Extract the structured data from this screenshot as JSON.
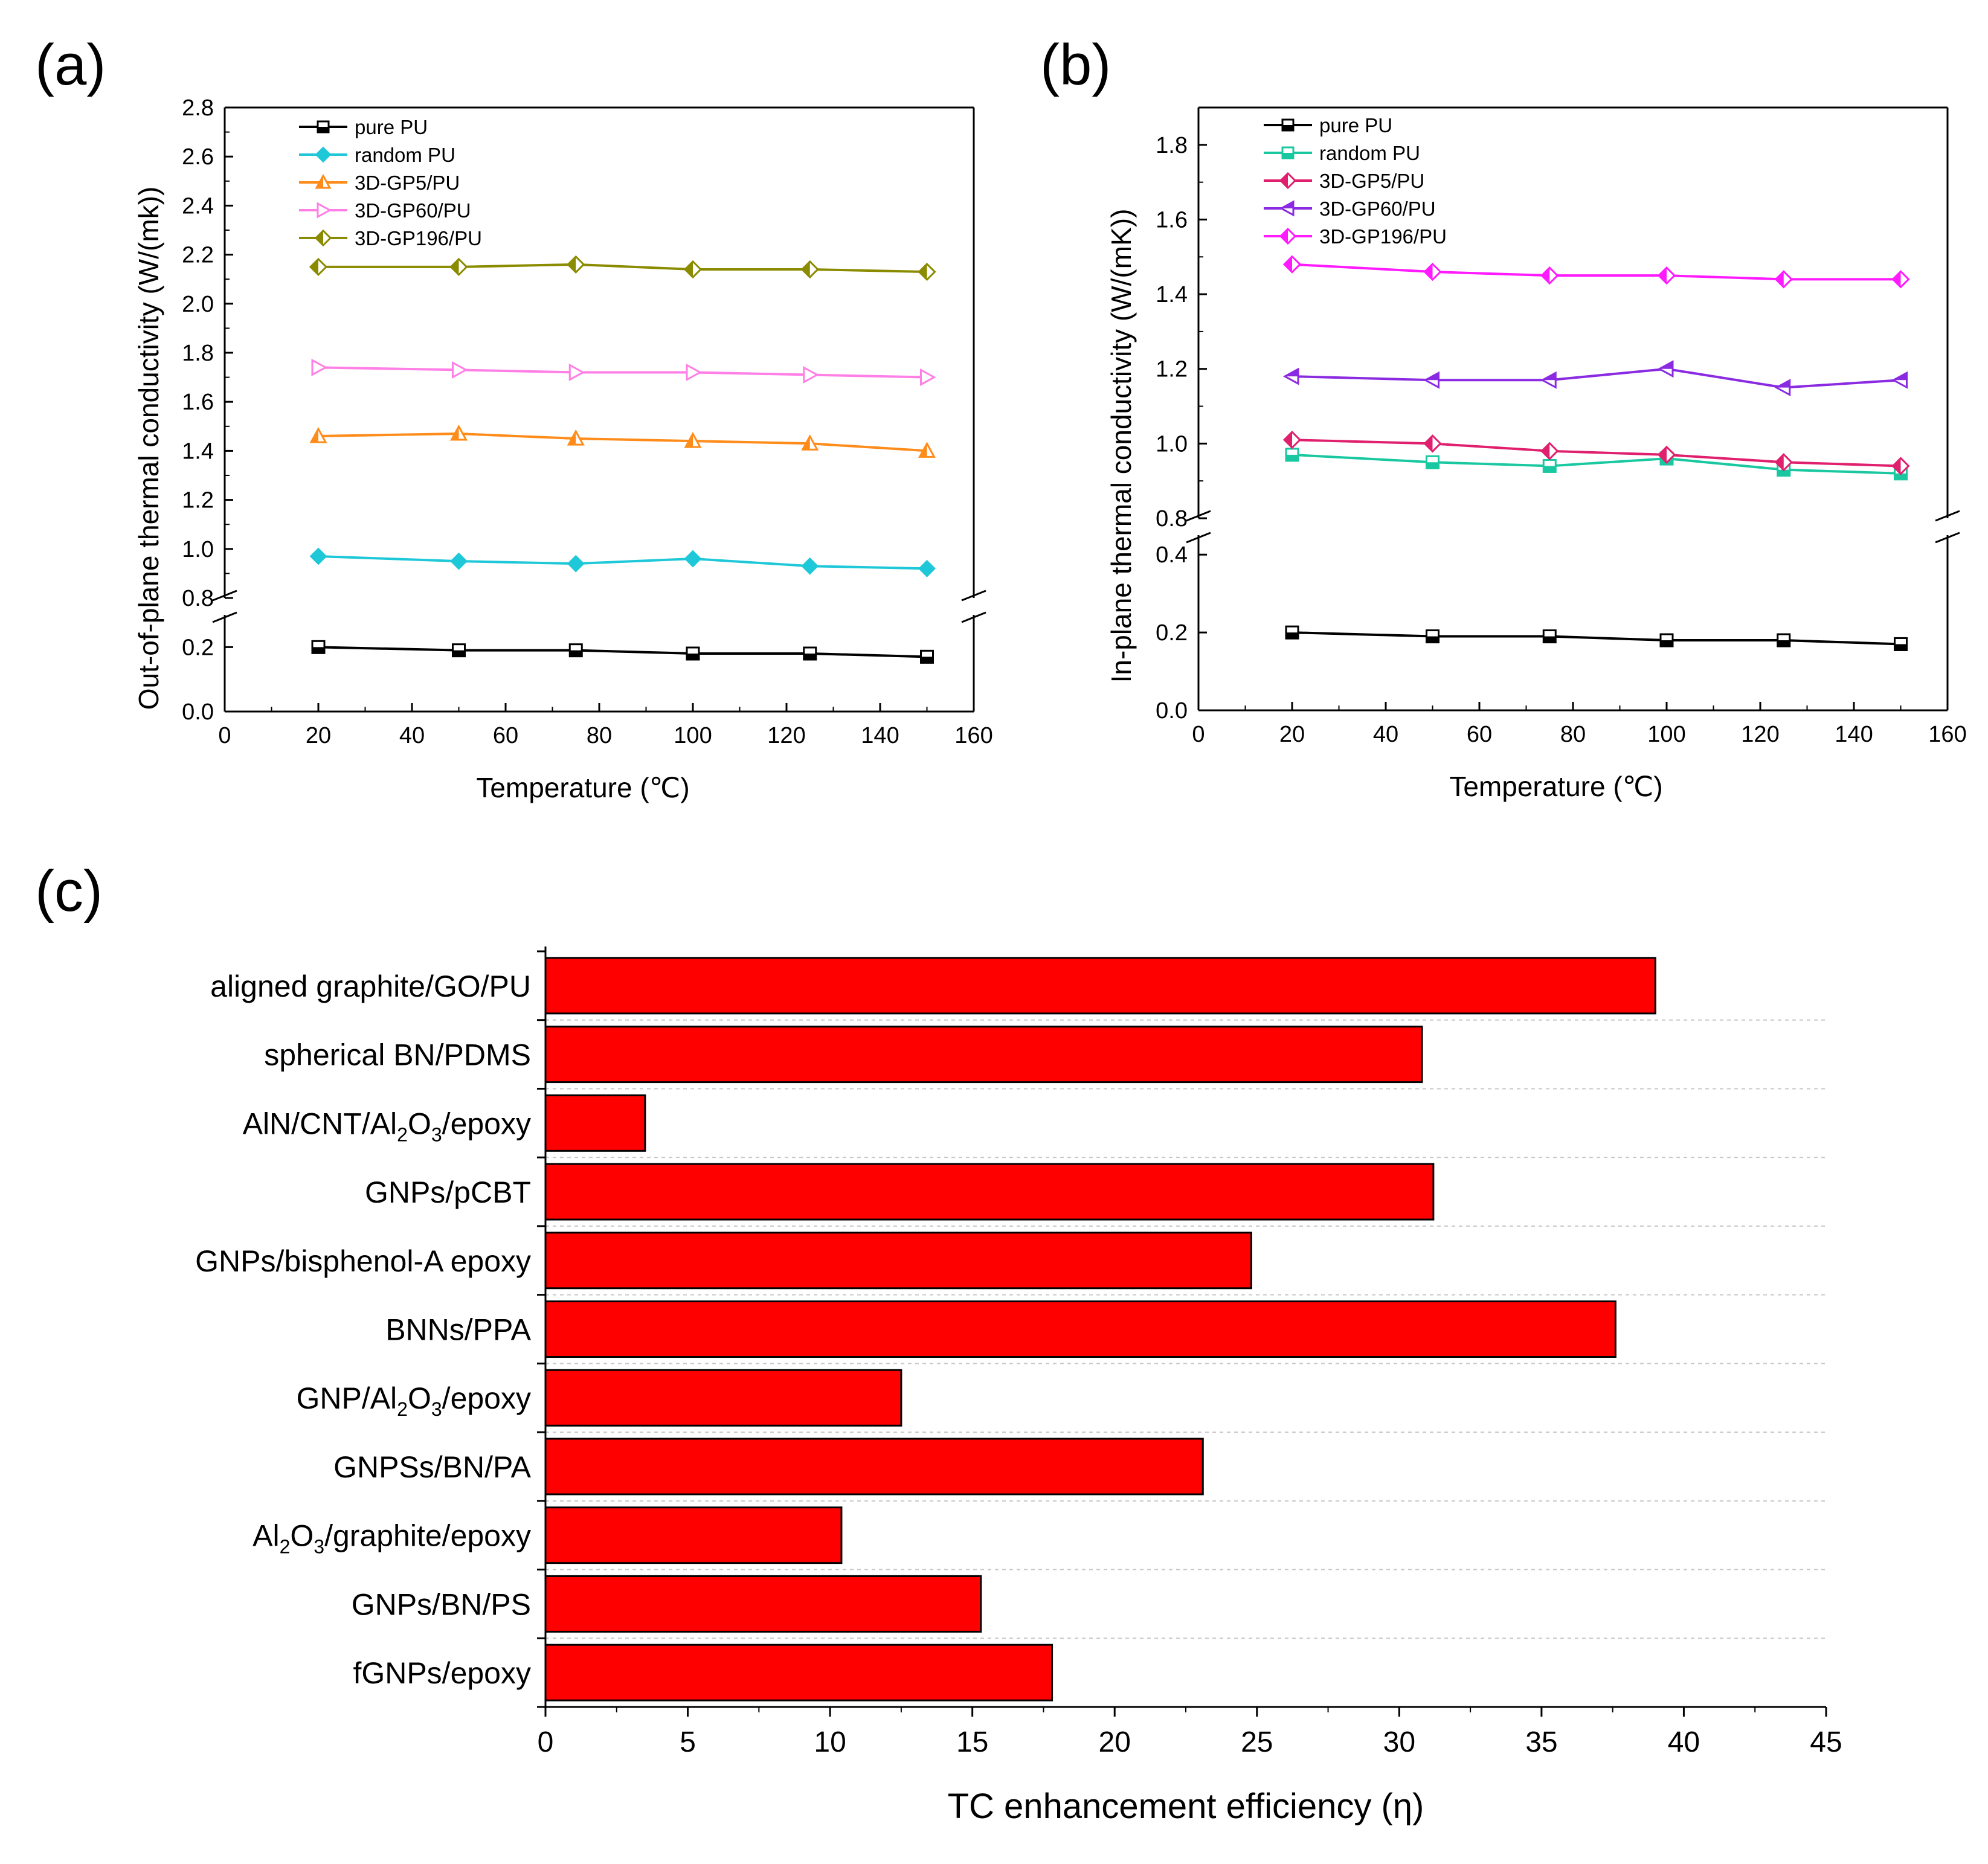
{
  "panels": [
    {
      "id": "a",
      "label": "(a)",
      "chart_data": {
        "type": "line",
        "xlabel": "Temperature (℃)",
        "ylabel": "Out-of-plane thermal conductivity (W/(mk))",
        "xlim": [
          0,
          160
        ],
        "xticks": [
          0,
          20,
          40,
          60,
          80,
          100,
          120,
          140,
          160
        ],
        "y_break": {
          "lower_range": [
            0.0,
            0.3
          ],
          "upper_range": [
            0.8,
            2.8
          ]
        },
        "yticks_lower": [
          "0.0",
          "0.2"
        ],
        "yticks_upper": [
          "0.8",
          "1.0",
          "1.2",
          "1.4",
          "1.6",
          "1.8",
          "2.0",
          "2.2",
          "2.4",
          "2.6",
          "2.8"
        ],
        "legend_position": "top-left",
        "x": [
          20,
          50,
          75,
          100,
          125,
          150
        ],
        "series": [
          {
            "name": "pure PU",
            "color": "#000000",
            "marker": "square-half",
            "values": [
              0.2,
              0.19,
              0.19,
              0.18,
              0.18,
              0.17
            ]
          },
          {
            "name": "random PU",
            "color": "#1ec8d8",
            "marker": "diamond",
            "values": [
              0.97,
              0.95,
              0.94,
              0.96,
              0.93,
              0.92
            ]
          },
          {
            "name": "3D-GP5/PU",
            "color": "#ff8c1a",
            "marker": "triangle-up",
            "values": [
              1.46,
              1.47,
              1.45,
              1.44,
              1.43,
              1.4
            ]
          },
          {
            "name": "3D-GP60/PU",
            "color": "#ff7fe6",
            "marker": "triangle-right",
            "values": [
              1.74,
              1.73,
              1.72,
              1.72,
              1.71,
              1.7
            ]
          },
          {
            "name": "3D-GP196/PU",
            "color": "#8b8b00",
            "marker": "diamond-half",
            "values": [
              2.15,
              2.15,
              2.16,
              2.14,
              2.14,
              2.13
            ]
          }
        ]
      }
    },
    {
      "id": "b",
      "label": "(b)",
      "chart_data": {
        "type": "line",
        "xlabel": "Temperature (℃)",
        "ylabel": "In-plane thermal conductivity (W/(mK))",
        "xlim": [
          0,
          160
        ],
        "xticks": [
          0,
          20,
          40,
          60,
          80,
          100,
          120,
          140,
          160
        ],
        "y_break": {
          "lower_range": [
            0.0,
            0.45
          ],
          "upper_range": [
            0.8,
            1.9
          ]
        },
        "yticks_lower": [
          "0.0",
          "0.2",
          "0.4"
        ],
        "yticks_upper": [
          "0.8",
          "1.0",
          "1.2",
          "1.4",
          "1.6",
          "1.8"
        ],
        "legend_position": "top-left",
        "x": [
          20,
          50,
          75,
          100,
          125,
          150
        ],
        "series": [
          {
            "name": "pure PU",
            "color": "#000000",
            "marker": "square-half",
            "values": [
              0.2,
              0.19,
              0.19,
              0.18,
              0.18,
              0.17
            ]
          },
          {
            "name": "random PU",
            "color": "#19c8a0",
            "marker": "square-half",
            "values": [
              0.97,
              0.95,
              0.94,
              0.96,
              0.93,
              0.92
            ]
          },
          {
            "name": "3D-GP5/PU",
            "color": "#e0206e",
            "marker": "diamond-half",
            "values": [
              1.01,
              1.0,
              0.98,
              0.97,
              0.95,
              0.94
            ]
          },
          {
            "name": "3D-GP60/PU",
            "color": "#8a2be2",
            "marker": "triangle-left-half",
            "values": [
              1.18,
              1.17,
              1.17,
              1.2,
              1.15,
              1.17
            ]
          },
          {
            "name": "3D-GP196/PU",
            "color": "#ff1aff",
            "marker": "diamond-half",
            "values": [
              1.48,
              1.46,
              1.45,
              1.45,
              1.44,
              1.44
            ]
          }
        ]
      }
    },
    {
      "id": "c",
      "label": "(c)",
      "chart_data": {
        "type": "bar",
        "orientation": "horizontal",
        "xlabel": "TC enhancement efficiency (η)",
        "xlim": [
          0,
          45
        ],
        "xticks": [
          0,
          5,
          10,
          15,
          20,
          25,
          30,
          35,
          40,
          45
        ],
        "bar_color": "#ff0000",
        "categories": [
          {
            "parts": [
              {
                "t": "aligned graphite/GO/PU"
              }
            ]
          },
          {
            "parts": [
              {
                "t": "spherical BN/PDMS"
              }
            ]
          },
          {
            "parts": [
              {
                "t": "AlN/CNT/Al"
              },
              {
                "t": "2",
                "sub": true
              },
              {
                "t": "O"
              },
              {
                "t": "3",
                "sub": true
              },
              {
                "t": "/epoxy"
              }
            ]
          },
          {
            "parts": [
              {
                "t": "GNPs/pCBT"
              }
            ]
          },
          {
            "parts": [
              {
                "t": "GNPs/bisphenol-A epoxy"
              }
            ]
          },
          {
            "parts": [
              {
                "t": "BNNs/PPA"
              }
            ]
          },
          {
            "parts": [
              {
                "t": "GNP/Al"
              },
              {
                "t": "2",
                "sub": true
              },
              {
                "t": "O"
              },
              {
                "t": "3",
                "sub": true
              },
              {
                "t": "/epoxy"
              }
            ]
          },
          {
            "parts": [
              {
                "t": "GNPSs/BN/PA"
              }
            ]
          },
          {
            "parts": [
              {
                "t": "Al"
              },
              {
                "t": "2",
                "sub": true
              },
              {
                "t": "O"
              },
              {
                "t": "3",
                "sub": true
              },
              {
                "t": "/graphite/epoxy"
              }
            ]
          },
          {
            "parts": [
              {
                "t": "GNPs/BN/PS"
              }
            ]
          },
          {
            "parts": [
              {
                "t": "fGNPs/epoxy"
              }
            ]
          }
        ],
        "values": [
          39.0,
          30.8,
          3.5,
          31.2,
          24.8,
          37.6,
          12.5,
          23.1,
          10.4,
          15.3,
          17.8
        ]
      }
    }
  ]
}
